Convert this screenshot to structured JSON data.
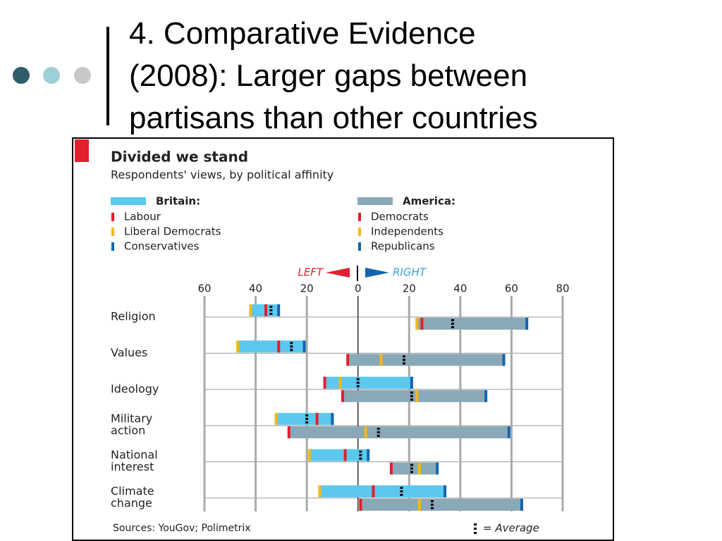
{
  "slide": {
    "title": [
      "4. Comparative Evidence",
      "(2008): Larger gaps between",
      "partisans than other countries"
    ]
  },
  "chart_data": {
    "type": "range",
    "title": "Divided we stand",
    "subtitle": "Respondents' views, by political affinity",
    "left_label": "LEFT",
    "right_label": "RIGHT",
    "source": "Sources: YouGov; Polimetrix",
    "average_label": "= Average",
    "categories": [
      [
        "Religion"
      ],
      [
        "Values"
      ],
      [
        "Ideology"
      ],
      [
        "Military",
        "action"
      ],
      [
        "National",
        "interest"
      ],
      [
        "Climate",
        "change"
      ]
    ],
    "xlim": [
      -60,
      80
    ],
    "xticks": [
      {
        "value": -60,
        "label": "60"
      },
      {
        "value": -40,
        "label": "40"
      },
      {
        "value": -20,
        "label": "20"
      },
      0,
      20,
      40,
      60,
      80
    ],
    "groups": [
      {
        "name": "Britain:",
        "color": "#5bc8f0",
        "parties": [
          {
            "name": "Labour",
            "color": "#e31e2d",
            "values": [
              -36,
              -31,
              -13,
              -16,
              -5,
              6
            ]
          },
          {
            "name": "Liberal Democrats",
            "color": "#f7b718",
            "values": [
              -42,
              -47,
              -7,
              -32,
              -19,
              -15
            ]
          },
          {
            "name": "Conservatives",
            "color": "#1165b0",
            "values": [
              -31,
              -21,
              21,
              -10,
              4,
              34
            ]
          }
        ],
        "average": [
          -34,
          -26,
          0,
          -20,
          1,
          17
        ]
      },
      {
        "name": "America:",
        "color": "#89a9b8",
        "parties": [
          {
            "name": "Democrats",
            "color": "#e31e2d",
            "values": [
              25,
              -4,
              -6,
              -27,
              13,
              1
            ]
          },
          {
            "name": "Independents",
            "color": "#f7b718",
            "values": [
              23,
              9,
              23,
              3,
              24,
              24
            ]
          },
          {
            "name": "Republicans",
            "color": "#1165b0",
            "values": [
              66,
              57,
              50,
              59,
              31,
              64
            ]
          }
        ],
        "average": [
          37,
          18,
          21,
          8,
          21,
          29
        ]
      }
    ]
  }
}
